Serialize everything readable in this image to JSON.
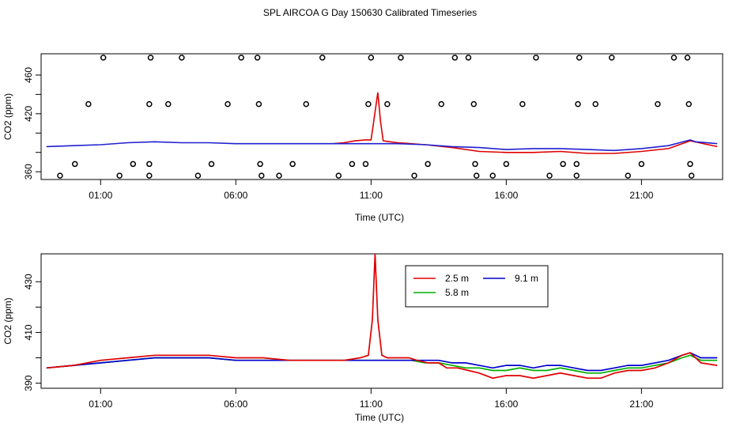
{
  "title": "SPL AIRCOA G  Day 150630  Calibrated Timeseries",
  "chart_data": [
    {
      "type": "scatter",
      "id": "top",
      "xlabel": "Time (UTC)",
      "ylabel": "CO2 (ppm)",
      "x_ticks": [
        "01:00",
        "06:00",
        "11:00",
        "16:00",
        "21:00"
      ],
      "x_tick_hours": [
        1,
        6,
        11,
        16,
        21
      ],
      "xlim_hours": [
        -1.2,
        24.0
      ],
      "y_ticks": [
        360,
        420,
        460
      ],
      "y_minor_ticks": [
        380,
        400,
        440
      ],
      "ylim": [
        352,
        482
      ],
      "series_line": {
        "name": "CO2 line",
        "color": "#2020d0",
        "points": [
          [
            -1.0,
            386
          ],
          [
            0.0,
            387
          ],
          [
            1.0,
            388
          ],
          [
            2.0,
            390
          ],
          [
            3.0,
            391
          ],
          [
            4.0,
            390
          ],
          [
            5.0,
            390
          ],
          [
            6.0,
            389
          ],
          [
            7.0,
            389
          ],
          [
            8.0,
            389
          ],
          [
            9.0,
            389
          ],
          [
            10.0,
            389
          ],
          [
            11.0,
            389
          ],
          [
            12.0,
            389
          ],
          [
            13.0,
            388
          ],
          [
            14.0,
            386
          ],
          [
            15.0,
            385
          ],
          [
            16.0,
            383
          ],
          [
            17.0,
            384
          ],
          [
            18.0,
            384
          ],
          [
            19.0,
            383
          ],
          [
            20.0,
            382
          ],
          [
            21.0,
            384
          ],
          [
            22.0,
            387
          ],
          [
            22.8,
            393
          ],
          [
            23.0,
            391
          ],
          [
            23.8,
            389
          ]
        ]
      },
      "series_red_overlay": {
        "name": "2.5 m spike",
        "color": "#e00000",
        "points": [
          [
            9.6,
            389
          ],
          [
            10.0,
            390
          ],
          [
            10.4,
            392
          ],
          [
            10.8,
            393
          ],
          [
            11.0,
            393
          ],
          [
            11.1,
            412
          ],
          [
            11.25,
            442
          ],
          [
            11.35,
            412
          ],
          [
            11.45,
            392
          ],
          [
            11.7,
            391
          ],
          [
            12.0,
            390
          ],
          [
            13.0,
            388
          ],
          [
            14.0,
            385
          ],
          [
            15.0,
            381
          ],
          [
            16.0,
            380
          ],
          [
            17.0,
            380
          ],
          [
            18.0,
            381
          ],
          [
            19.0,
            379
          ],
          [
            20.0,
            379
          ],
          [
            21.0,
            381
          ],
          [
            22.0,
            384
          ],
          [
            22.8,
            392
          ],
          [
            23.8,
            386
          ]
        ]
      },
      "markers": [
        {
          "x": -0.5,
          "y": 356
        },
        {
          "x": 0.05,
          "y": 368
        },
        {
          "x": 0.55,
          "y": 430
        },
        {
          "x": 1.1,
          "y": 478
        },
        {
          "x": 1.7,
          "y": 356
        },
        {
          "x": 2.2,
          "y": 368
        },
        {
          "x": 2.8,
          "y": 368
        },
        {
          "x": 2.8,
          "y": 356
        },
        {
          "x": 2.8,
          "y": 430
        },
        {
          "x": 2.85,
          "y": 478
        },
        {
          "x": 3.5,
          "y": 430
        },
        {
          "x": 4.0,
          "y": 478
        },
        {
          "x": 4.6,
          "y": 356
        },
        {
          "x": 5.1,
          "y": 368
        },
        {
          "x": 5.7,
          "y": 430
        },
        {
          "x": 6.2,
          "y": 478
        },
        {
          "x": 6.8,
          "y": 478
        },
        {
          "x": 6.85,
          "y": 430
        },
        {
          "x": 6.9,
          "y": 368
        },
        {
          "x": 6.95,
          "y": 356
        },
        {
          "x": 7.6,
          "y": 356
        },
        {
          "x": 8.1,
          "y": 368
        },
        {
          "x": 8.6,
          "y": 430
        },
        {
          "x": 9.2,
          "y": 478
        },
        {
          "x": 9.8,
          "y": 356
        },
        {
          "x": 10.3,
          "y": 368
        },
        {
          "x": 10.8,
          "y": 368
        },
        {
          "x": 10.9,
          "y": 430
        },
        {
          "x": 11.0,
          "y": 478
        },
        {
          "x": 11.6,
          "y": 430
        },
        {
          "x": 12.1,
          "y": 478
        },
        {
          "x": 12.6,
          "y": 356
        },
        {
          "x": 13.1,
          "y": 368
        },
        {
          "x": 13.6,
          "y": 430
        },
        {
          "x": 14.1,
          "y": 478
        },
        {
          "x": 14.6,
          "y": 478
        },
        {
          "x": 14.8,
          "y": 430
        },
        {
          "x": 14.85,
          "y": 368
        },
        {
          "x": 14.9,
          "y": 356
        },
        {
          "x": 15.5,
          "y": 356
        },
        {
          "x": 16.0,
          "y": 368
        },
        {
          "x": 16.6,
          "y": 430
        },
        {
          "x": 17.1,
          "y": 478
        },
        {
          "x": 17.6,
          "y": 356
        },
        {
          "x": 18.1,
          "y": 368
        },
        {
          "x": 18.6,
          "y": 368
        },
        {
          "x": 18.6,
          "y": 356
        },
        {
          "x": 18.65,
          "y": 430
        },
        {
          "x": 18.7,
          "y": 478
        },
        {
          "x": 19.3,
          "y": 430
        },
        {
          "x": 19.9,
          "y": 478
        },
        {
          "x": 20.5,
          "y": 356
        },
        {
          "x": 21.0,
          "y": 368
        },
        {
          "x": 21.6,
          "y": 430
        },
        {
          "x": 22.2,
          "y": 478
        },
        {
          "x": 22.7,
          "y": 478
        },
        {
          "x": 22.75,
          "y": 430
        },
        {
          "x": 22.8,
          "y": 368
        },
        {
          "x": 22.85,
          "y": 356
        }
      ]
    },
    {
      "type": "line",
      "id": "bottom",
      "xlabel": "Time (UTC)",
      "ylabel": "CO2 (ppm)",
      "x_ticks": [
        "01:00",
        "06:00",
        "11:00",
        "16:00",
        "21:00"
      ],
      "x_tick_hours": [
        1,
        6,
        11,
        16,
        21
      ],
      "xlim_hours": [
        -1.2,
        24.0
      ],
      "y_ticks": [
        390,
        410,
        430
      ],
      "y_minor_ticks": [
        400,
        420
      ],
      "ylim": [
        388,
        441
      ],
      "legend": [
        "2.5 m",
        "5.8 m",
        "9.1 m"
      ],
      "series": [
        {
          "name": "2.5 m",
          "color": "#e00000",
          "points": [
            [
              -1.0,
              396
            ],
            [
              0.0,
              397
            ],
            [
              1.0,
              399
            ],
            [
              2.0,
              400
            ],
            [
              3.0,
              401
            ],
            [
              4.0,
              401
            ],
            [
              5.0,
              401
            ],
            [
              6.0,
              400
            ],
            [
              7.0,
              400
            ],
            [
              8.0,
              399
            ],
            [
              9.0,
              399
            ],
            [
              10.0,
              399
            ],
            [
              10.6,
              400
            ],
            [
              10.9,
              401
            ],
            [
              11.05,
              415
            ],
            [
              11.15,
              441
            ],
            [
              11.25,
              415
            ],
            [
              11.4,
              401
            ],
            [
              11.6,
              400
            ],
            [
              12.0,
              400
            ],
            [
              12.4,
              400
            ],
            [
              12.7,
              399
            ],
            [
              13.1,
              398
            ],
            [
              13.5,
              398
            ],
            [
              13.8,
              396
            ],
            [
              14.2,
              396
            ],
            [
              14.6,
              395
            ],
            [
              15.0,
              394
            ],
            [
              15.5,
              392
            ],
            [
              16.0,
              393
            ],
            [
              16.5,
              393
            ],
            [
              17.0,
              392
            ],
            [
              17.5,
              393
            ],
            [
              18.0,
              394
            ],
            [
              18.5,
              393
            ],
            [
              19.0,
              392
            ],
            [
              19.5,
              392
            ],
            [
              20.0,
              394
            ],
            [
              20.5,
              395
            ],
            [
              21.0,
              395
            ],
            [
              21.5,
              396
            ],
            [
              22.0,
              398
            ],
            [
              22.5,
              401
            ],
            [
              22.8,
              402
            ],
            [
              23.2,
              398
            ],
            [
              23.8,
              397
            ]
          ]
        },
        {
          "name": "5.8 m",
          "color": "#00b000",
          "points": [
            [
              -1.0,
              396
            ],
            [
              0.0,
              397
            ],
            [
              1.0,
              398
            ],
            [
              2.0,
              399
            ],
            [
              3.0,
              400
            ],
            [
              4.0,
              400
            ],
            [
              5.0,
              400
            ],
            [
              6.0,
              399
            ],
            [
              7.0,
              399
            ],
            [
              8.0,
              399
            ],
            [
              9.0,
              399
            ],
            [
              10.0,
              399
            ],
            [
              11.0,
              399
            ],
            [
              12.0,
              399
            ],
            [
              12.5,
              399
            ],
            [
              13.0,
              398
            ],
            [
              13.5,
              398
            ],
            [
              14.0,
              397
            ],
            [
              14.5,
              396
            ],
            [
              15.0,
              396
            ],
            [
              15.5,
              395
            ],
            [
              16.0,
              395
            ],
            [
              16.5,
              396
            ],
            [
              17.0,
              395
            ],
            [
              17.5,
              395
            ],
            [
              18.0,
              396
            ],
            [
              18.5,
              395
            ],
            [
              19.0,
              394
            ],
            [
              19.5,
              394
            ],
            [
              20.0,
              395
            ],
            [
              20.5,
              396
            ],
            [
              21.0,
              396
            ],
            [
              21.5,
              397
            ],
            [
              22.0,
              398
            ],
            [
              22.5,
              400
            ],
            [
              22.8,
              401
            ],
            [
              23.2,
              399
            ],
            [
              23.8,
              399
            ]
          ]
        },
        {
          "name": "9.1 m",
          "color": "#0000d0",
          "points": [
            [
              -1.0,
              396
            ],
            [
              0.0,
              397
            ],
            [
              1.0,
              398
            ],
            [
              2.0,
              399
            ],
            [
              3.0,
              400
            ],
            [
              4.0,
              400
            ],
            [
              5.0,
              400
            ],
            [
              6.0,
              399
            ],
            [
              7.0,
              399
            ],
            [
              8.0,
              399
            ],
            [
              9.0,
              399
            ],
            [
              10.0,
              399
            ],
            [
              11.0,
              399
            ],
            [
              12.0,
              399
            ],
            [
              12.5,
              399
            ],
            [
              13.0,
              399
            ],
            [
              13.5,
              399
            ],
            [
              14.0,
              398
            ],
            [
              14.5,
              398
            ],
            [
              15.0,
              397
            ],
            [
              15.5,
              396
            ],
            [
              16.0,
              397
            ],
            [
              16.5,
              397
            ],
            [
              17.0,
              396
            ],
            [
              17.5,
              397
            ],
            [
              18.0,
              397
            ],
            [
              18.5,
              396
            ],
            [
              19.0,
              395
            ],
            [
              19.5,
              395
            ],
            [
              20.0,
              396
            ],
            [
              20.5,
              397
            ],
            [
              21.0,
              397
            ],
            [
              21.5,
              398
            ],
            [
              22.0,
              399
            ],
            [
              22.5,
              401
            ],
            [
              22.8,
              402
            ],
            [
              23.2,
              400
            ],
            [
              23.8,
              400
            ]
          ]
        }
      ]
    }
  ]
}
